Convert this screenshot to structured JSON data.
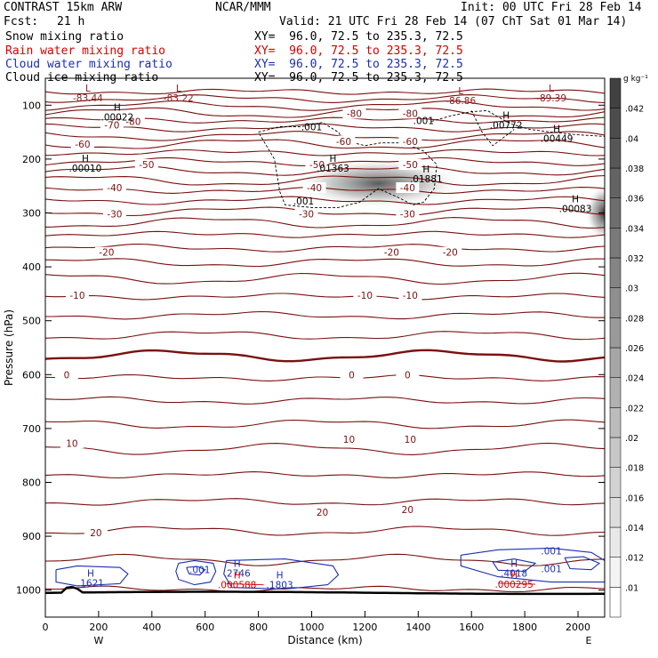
{
  "header": {
    "model": "CONTRAST 15km ARW",
    "center": "NCAR/MMM",
    "init": "Init: 00 UTC Fri 28 Feb 14",
    "fcst_label": "Fcst:",
    "fcst_value": "21 h",
    "valid": "Valid: 21 UTC Fri 28 Feb 14 (07 ChT Sat 01 Mar 14)"
  },
  "fields": [
    {
      "name": "Snow mixing ratio",
      "xy": "XY=  96.0, 72.5 to 235.3, 72.5",
      "color": "#000000"
    },
    {
      "name": "Rain water mixing ratio",
      "xy": "XY=  96.0, 72.5 to 235.3, 72.5",
      "color": "#d40000"
    },
    {
      "name": "Cloud water mixing ratio",
      "xy": "XY=  96.0, 72.5 to 235.3, 72.5",
      "color": "#1a2fb0"
    },
    {
      "name": "Cloud ice mixing ratio",
      "xy": "XY=  96.0, 72.5 to 235.3, 72.5",
      "color": "#000000"
    }
  ],
  "chart_data": {
    "type": "contour",
    "xlabel": "Distance (km)",
    "ylabel": "Pressure (hPa)",
    "xlim": [
      0,
      2100
    ],
    "ylim": [
      1050,
      50
    ],
    "x_ticks": [
      0,
      200,
      400,
      600,
      800,
      1000,
      1200,
      1400,
      1600,
      1800,
      2000
    ],
    "y_ticks": [
      100,
      200,
      300,
      400,
      500,
      600,
      700,
      800,
      900,
      1000
    ],
    "x_end_labels": {
      "left": "W",
      "right": "E"
    },
    "colorbar": {
      "unit": "g kg⁻¹",
      "ticks": [
        ".01",
        ".012",
        ".014",
        ".016",
        ".018",
        ".02",
        ".022",
        ".024",
        ".026",
        ".028",
        ".03",
        ".032",
        ".034",
        ".036",
        ".038",
        ".04",
        ".042"
      ]
    },
    "temperature_contour_labels": [
      {
        "x": 330,
        "p": 130,
        "text": "-80"
      },
      {
        "x": 1160,
        "p": 115,
        "text": "-80"
      },
      {
        "x": 1370,
        "p": 115,
        "text": "-80"
      },
      {
        "x": 250,
        "p": 137,
        "text": "-70"
      },
      {
        "x": 140,
        "p": 172,
        "text": "-60"
      },
      {
        "x": 1120,
        "p": 167,
        "text": "-60"
      },
      {
        "x": 1370,
        "p": 167,
        "text": "-60"
      },
      {
        "x": 380,
        "p": 210,
        "text": "-50"
      },
      {
        "x": 1020,
        "p": 210,
        "text": "-50"
      },
      {
        "x": 1370,
        "p": 210,
        "text": "-50"
      },
      {
        "x": 260,
        "p": 253,
        "text": "-40"
      },
      {
        "x": 1010,
        "p": 253,
        "text": "-40"
      },
      {
        "x": 1360,
        "p": 253,
        "text": "-40"
      },
      {
        "x": 260,
        "p": 302,
        "text": "-30"
      },
      {
        "x": 980,
        "p": 302,
        "text": "-30"
      },
      {
        "x": 1360,
        "p": 302,
        "text": "-30"
      },
      {
        "x": 230,
        "p": 373,
        "text": "-20"
      },
      {
        "x": 1300,
        "p": 373,
        "text": "-20"
      },
      {
        "x": 1520,
        "p": 373,
        "text": "-20"
      },
      {
        "x": 120,
        "p": 453,
        "text": "-10"
      },
      {
        "x": 1200,
        "p": 453,
        "text": "-10"
      },
      {
        "x": 1370,
        "p": 453,
        "text": "-10"
      },
      {
        "x": 80,
        "p": 600,
        "text": "0"
      },
      {
        "x": 1150,
        "p": 600,
        "text": "0"
      },
      {
        "x": 1360,
        "p": 600,
        "text": "0"
      },
      {
        "x": 100,
        "p": 727,
        "text": "10"
      },
      {
        "x": 1140,
        "p": 720,
        "text": "10"
      },
      {
        "x": 1370,
        "p": 720,
        "text": "10"
      },
      {
        "x": 1040,
        "p": 855,
        "text": "20"
      },
      {
        "x": 1360,
        "p": 850,
        "text": "20"
      },
      {
        "x": 190,
        "p": 893,
        "text": "20"
      }
    ],
    "extrema_labels": [
      {
        "x": 160,
        "p": 75,
        "letter": "L",
        "value": "-83.44",
        "color": "#8b1a1a"
      },
      {
        "x": 500,
        "p": 75,
        "letter": "L",
        "value": "-83.22",
        "color": "#8b1a1a"
      },
      {
        "x": 1560,
        "p": 80,
        "letter": "L",
        "value": "-86.86",
        "color": "#8b1a1a"
      },
      {
        "x": 1900,
        "p": 75,
        "letter": "L",
        "value": "-89.39",
        "color": "#8b1a1a"
      },
      {
        "x": 270,
        "p": 110,
        "letter": "H",
        "value": ".00022",
        "color": "#000000"
      },
      {
        "x": 1730,
        "p": 125,
        "letter": "H",
        "value": ".00772",
        "color": "#000000"
      },
      {
        "x": 1920,
        "p": 150,
        "letter": "H",
        "value": ".00449",
        "color": "#000000"
      },
      {
        "x": 150,
        "p": 205,
        "letter": "H",
        "value": ".00010",
        "color": "#000000"
      },
      {
        "x": 1080,
        "p": 205,
        "letter": "H",
        "value": ".01363",
        "color": "#000000"
      },
      {
        "x": 1430,
        "p": 225,
        "letter": "H",
        "value": ".01881",
        "color": "#000000"
      },
      {
        "x": 1990,
        "p": 280,
        "letter": "H",
        "value": ".00083",
        "color": "#000000"
      },
      {
        "x": 170,
        "p": 975,
        "letter": "H",
        "value": ".1621",
        "color": "#1a2fb0"
      },
      {
        "x": 720,
        "p": 957,
        "letter": "H",
        "value": ".2746",
        "color": "#1a2fb0"
      },
      {
        "x": 720,
        "p": 978,
        "letter": "H",
        "value": ".000588",
        "color": "#d40000"
      },
      {
        "x": 880,
        "p": 978,
        "letter": "H",
        "value": ".1803",
        "color": "#1a2fb0"
      },
      {
        "x": 1760,
        "p": 957,
        "letter": "H",
        "value": ".4018",
        "color": "#1a2fb0"
      },
      {
        "x": 1760,
        "p": 977,
        "letter": "H",
        "value": ".000295",
        "color": "#d40000"
      }
    ],
    "contour_value_labels": [
      {
        "x": 1000,
        "p": 140,
        "text": ".001"
      },
      {
        "x": 1420,
        "p": 128,
        "text": ".001"
      },
      {
        "x": 970,
        "p": 278,
        "text": ".001"
      },
      {
        "x": 580,
        "p": 962,
        "text": ".001",
        "color": "#1a2fb0"
      },
      {
        "x": 1900,
        "p": 927,
        "text": ".001",
        "color": "#1a2fb0"
      },
      {
        "x": 1900,
        "p": 960,
        "text": ".001",
        "color": "#1a2fb0"
      }
    ]
  }
}
